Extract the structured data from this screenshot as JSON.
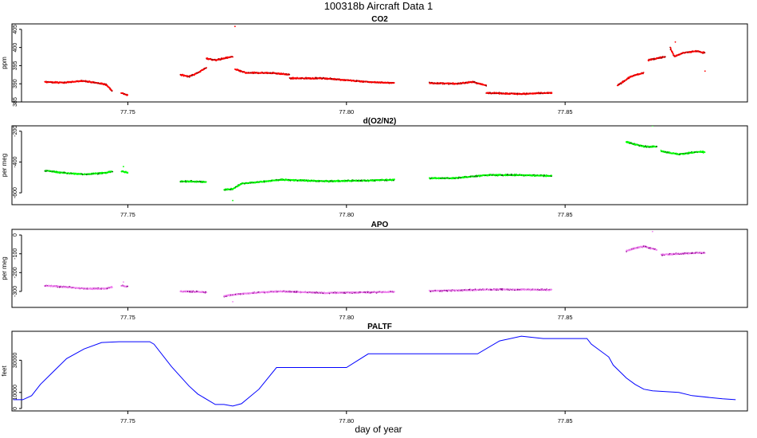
{
  "figure": {
    "title": "100318b   Aircraft Data 1",
    "xlabel": "day of year"
  },
  "chart_data": [
    {
      "type": "scatter",
      "title": "CO2",
      "ylabel": "ppm",
      "xlim": [
        77.7235,
        77.8917
      ],
      "ylim": [
        385,
        406.5
      ],
      "xticks": [
        77.75,
        77.8,
        77.85
      ],
      "xtick_labels": [
        "77.75",
        "77.80",
        "77.85"
      ],
      "yticks": [
        385,
        390,
        395,
        400,
        405
      ],
      "ytick_labels": [
        "385",
        "390",
        "395",
        "400",
        "405"
      ],
      "color": "#ff0000",
      "edge_color": "#8b0000",
      "segments": [
        {
          "x": [
            77.731,
            77.735,
            77.74,
            77.745,
            77.7465
          ],
          "y": [
            390.5,
            390.3,
            390.8,
            389.8,
            388.0
          ]
        },
        {
          "x": [
            77.7485,
            77.75
          ],
          "y": [
            387.5,
            386.8
          ]
        },
        {
          "x": [
            77.762,
            77.764,
            77.766,
            77.768
          ],
          "y": [
            392.5,
            392.0,
            393.0,
            394.5
          ]
        },
        {
          "x": [
            77.768,
            77.77,
            77.772,
            77.774
          ],
          "y": [
            397.0,
            396.5,
            397.0,
            397.5
          ]
        },
        {
          "x": [
            77.7745,
            77.777,
            77.78,
            77.783,
            77.787
          ],
          "y": [
            394.0,
            393.0,
            393.0,
            393.0,
            392.5
          ]
        },
        {
          "x": [
            77.787,
            77.795,
            77.8,
            77.805,
            77.811
          ],
          "y": [
            391.5,
            391.5,
            391.0,
            390.5,
            390.2
          ]
        },
        {
          "x": [
            77.819,
            77.825,
            77.829,
            77.832
          ],
          "y": [
            390.2,
            390.0,
            390.5,
            389.5
          ]
        },
        {
          "x": [
            77.832,
            77.84,
            77.847
          ],
          "y": [
            387.5,
            387.2,
            387.5
          ]
        },
        {
          "x": [
            77.862,
            77.865,
            77.868
          ],
          "y": [
            389.5,
            392.0,
            393.0
          ]
        },
        {
          "x": [
            77.869,
            77.871,
            77.873
          ],
          "y": [
            396.5,
            397.0,
            397.5
          ]
        },
        {
          "x": [
            77.874,
            77.875,
            77.877,
            77.88,
            77.882
          ],
          "y": [
            400.0,
            397.5,
            398.5,
            399.0,
            398.5
          ]
        }
      ],
      "outliers": [
        {
          "x": 77.7745,
          "y": 405.8
        },
        {
          "x": 77.8752,
          "y": 401.5
        },
        {
          "x": 77.882,
          "y": 393.5
        }
      ]
    },
    {
      "type": "scatter",
      "title": "d(O2/N2)",
      "ylabel": "per meg",
      "xlim": [
        77.7235,
        77.8917
      ],
      "ylim": [
        -677,
        -165
      ],
      "xticks": [
        77.75,
        77.8,
        77.85
      ],
      "xtick_labels": [
        "77.75",
        "77.80",
        "77.85"
      ],
      "yticks": [
        -600,
        -400,
        -200
      ],
      "ytick_labels": [
        "-600",
        "-400",
        "-200"
      ],
      "color": "#00ff00",
      "edge_color": "#006400",
      "segments": [
        {
          "x": [
            77.731,
            77.735,
            77.74,
            77.745,
            77.7465
          ],
          "y": [
            -455,
            -470,
            -480,
            -470,
            -460
          ]
        },
        {
          "x": [
            77.7485,
            77.75
          ],
          "y": [
            -460,
            -470
          ]
        },
        {
          "x": [
            77.762,
            77.766,
            77.768
          ],
          "y": [
            -525,
            -528,
            -530
          ]
        },
        {
          "x": [
            77.772,
            77.774,
            77.776,
            77.78,
            77.785,
            77.795,
            77.805,
            77.811
          ],
          "y": [
            -580,
            -575,
            -540,
            -530,
            -515,
            -525,
            -520,
            -515
          ]
        },
        {
          "x": [
            77.819,
            77.825,
            77.832,
            77.84,
            77.847
          ],
          "y": [
            -505,
            -505,
            -485,
            -485,
            -490
          ]
        },
        {
          "x": [
            77.864,
            77.866,
            77.868,
            77.871
          ],
          "y": [
            -270,
            -285,
            -300,
            -300
          ]
        },
        {
          "x": [
            77.872,
            77.876,
            77.88,
            77.882
          ],
          "y": [
            -330,
            -350,
            -335,
            -335
          ]
        }
      ],
      "outliers": [
        {
          "x": 77.774,
          "y": -650
        },
        {
          "x": 77.87,
          "y": -165
        },
        {
          "x": 77.749,
          "y": -430
        }
      ]
    },
    {
      "type": "scatter",
      "title": "APO",
      "ylabel": "per meg",
      "xlim": [
        77.7235,
        77.8917
      ],
      "ylim": [
        -385,
        30
      ],
      "xticks": [
        77.75,
        77.8,
        77.85
      ],
      "xtick_labels": [
        "77.75",
        "77.80",
        "77.85"
      ],
      "yticks": [
        -300,
        -200,
        -100,
        0
      ],
      "ytick_labels": [
        "-300",
        "-200",
        "-100",
        "0"
      ],
      "color": "#ee82ee",
      "edge_color": "#8b008b",
      "segments": [
        {
          "x": [
            77.731,
            77.735,
            77.74,
            77.745,
            77.7465
          ],
          "y": [
            -270,
            -275,
            -285,
            -285,
            -275
          ]
        },
        {
          "x": [
            77.7485,
            77.75
          ],
          "y": [
            -270,
            -275
          ]
        },
        {
          "x": [
            77.762,
            77.766,
            77.768
          ],
          "y": [
            -300,
            -302,
            -305
          ]
        },
        {
          "x": [
            77.772,
            77.775,
            77.78,
            77.785,
            77.795,
            77.805,
            77.811
          ],
          "y": [
            -325,
            -315,
            -305,
            -300,
            -308,
            -305,
            -302
          ]
        },
        {
          "x": [
            77.819,
            77.825,
            77.832,
            77.84,
            77.847
          ],
          "y": [
            -298,
            -295,
            -290,
            -290,
            -292
          ]
        },
        {
          "x": [
            77.864,
            77.866,
            77.868,
            77.871
          ],
          "y": [
            -85,
            -70,
            -60,
            -80
          ]
        },
        {
          "x": [
            77.872,
            77.876,
            77.88,
            77.882
          ],
          "y": [
            -105,
            -100,
            -95,
            -95
          ]
        }
      ],
      "outliers": [
        {
          "x": 77.87,
          "y": 18
        },
        {
          "x": 77.774,
          "y": -355
        },
        {
          "x": 77.749,
          "y": -250
        }
      ]
    },
    {
      "type": "line",
      "title": "PALTF",
      "ylabel": "feet",
      "xlim": [
        77.7235,
        77.8917
      ],
      "ylim": [
        -1500,
        48000
      ],
      "xticks": [
        77.75,
        77.8,
        77.85
      ],
      "xtick_labels": [
        "77.75",
        "77.80",
        "77.85"
      ],
      "yticks": [
        0,
        10000,
        30000
      ],
      "ytick_labels": [
        "0",
        "10000",
        "30000"
      ],
      "color": "#0000ff",
      "series": [
        {
          "x": [
            77.7238,
            77.726,
            77.728,
            77.73,
            77.733,
            77.736,
            77.74,
            77.744,
            77.748,
            77.75,
            77.755,
            77.756,
            77.76,
            77.764,
            77.766,
            77.77,
            77.772,
            77.774,
            77.776,
            77.78,
            77.784,
            77.8,
            77.805,
            77.83,
            77.835,
            77.84,
            77.845,
            77.855,
            77.856,
            77.86,
            77.861,
            77.864,
            77.866,
            77.868,
            77.87,
            77.876,
            77.879,
            77.886,
            77.889
          ],
          "y": [
            5500,
            5500,
            8000,
            15000,
            23000,
            31000,
            37000,
            41000,
            41500,
            41500,
            41500,
            40000,
            26000,
            14000,
            9000,
            2500,
            2500,
            1500,
            3000,
            12000,
            25500,
            25500,
            34000,
            34000,
            42000,
            45000,
            43500,
            43500,
            40000,
            32000,
            27000,
            19000,
            15000,
            12000,
            11000,
            10000,
            8000,
            6000,
            5500
          ]
        }
      ]
    }
  ]
}
